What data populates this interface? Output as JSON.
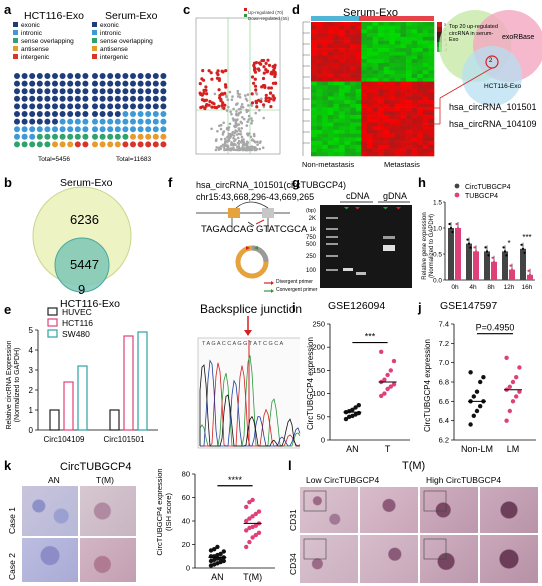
{
  "panel_letters": [
    "a",
    "b",
    "c",
    "d",
    "e",
    "f",
    "g",
    "h",
    "i",
    "j",
    "k",
    "l"
  ],
  "panel_a": {
    "left_title": "HCT116-Exo",
    "right_title": "Serum-Exo",
    "legend": [
      "exonic",
      "intronic",
      "sense overlapping",
      "antisense",
      "intergenic"
    ],
    "legend_colors": [
      "#1f3d7a",
      "#3d9ad6",
      "#2fa36b",
      "#e89a2c",
      "#d9342b"
    ],
    "left_total": "Total=5456",
    "right_total": "Total=11683"
  },
  "panel_b": {
    "top_label": "Serum-Exo",
    "bottom_label": "HCT116-Exo",
    "only_serum": "6236",
    "shared": "5447",
    "only_hct": "9",
    "colors": {
      "serum": "#e9efb8",
      "hct": "#7cc7b7"
    }
  },
  "panel_c": {
    "legend_up": "Up-regulated (70)",
    "legend_down": "Down-regulated (55)"
  },
  "panel_d": {
    "title": "Serum-Exo",
    "left_group": "Non-metastasis",
    "right_group": "Metastasis",
    "venn_text": "Top 20 up-regulated circRNA in serum-Exo",
    "venn_db": "exoRBase",
    "venn_cell": "HCT116-Exo",
    "venn_count": "2",
    "hits": [
      "hsa_circRNA_101501",
      "hsa_circRNA_104109"
    ],
    "colorbar_ticks": [
      "3",
      "2",
      "1",
      "0",
      "-1",
      "-2"
    ]
  },
  "panel_e": {
    "ylabel": "Relative circRNA Expression (Normalized to GAPDH)",
    "legend": [
      "HUVEC",
      "HCT116",
      "SW480"
    ],
    "series_colors": [
      "#222222",
      "#e0407a",
      "#2ba3a3"
    ]
  },
  "panel_f": {
    "title1": "hsa_circRNA_101501(circTUBGCP4)",
    "title2": "chr15:43,668,296-43,669,265",
    "seq_left": "TAGACCAG",
    "seq_right": "GTATCGCA",
    "legend_div": "Divergent primer",
    "legend_conv": "Convergent primer",
    "junction": "Backsplice junction",
    "chrom_seq": "T A G A C C A G G T A T C G C A"
  },
  "panel_g": {
    "bp_label": "(bp)",
    "group1": "cDNA",
    "group2": "gDNA",
    "lane_m": "M",
    "ladder": [
      "2K",
      "1k",
      "750",
      "500",
      "250",
      "100"
    ]
  },
  "panel_h": {
    "ylabel": "Relative gene expression (Normalized to GAPDH)",
    "legend": [
      "CircTUBGCP4",
      "TUBGCP4"
    ],
    "sig": [
      "*",
      "***"
    ]
  },
  "panel_i": {
    "title": "GSE126094",
    "ylabel": "CircTUBGCP4 expression",
    "sig": "***",
    "groups": [
      "AN",
      "T"
    ]
  },
  "panel_j": {
    "title": "GSE147597",
    "ylabel": "CircTUBGCP4 expression",
    "pval": "P=0.4950",
    "groups": [
      "Non-LM",
      "LM"
    ],
    "yticks": [
      "7.4",
      "7.2",
      "7.0",
      "6.8",
      "6.6",
      "6.4",
      "6.2"
    ]
  },
  "panel_k": {
    "title": "CircTUBGCP4",
    "col1": "AN",
    "col2": "T(M)",
    "row1": "Case 1",
    "row2": "Case 2",
    "ylabel": "CircTUBGCP4 expression (ISH score)",
    "sig": "****",
    "groups": [
      "AN",
      "T(M)"
    ]
  },
  "panel_l": {
    "title": "T(M)",
    "col1": "Low CircTUBGCP4",
    "col2": "High CircTUBGCP4",
    "row1": "CD31",
    "row2": "CD34"
  },
  "chart_data": [
    {
      "type": "bar",
      "panel": "e",
      "categories": [
        "Circ104109",
        "Circ101501"
      ],
      "series": [
        {
          "name": "HUVEC",
          "values": [
            1.0,
            1.0
          ]
        },
        {
          "name": "HCT116",
          "values": [
            2.4,
            4.7
          ]
        },
        {
          "name": "SW480",
          "values": [
            3.2,
            4.9
          ]
        }
      ],
      "ylim": [
        0,
        5
      ],
      "yticks": [
        0,
        1,
        2,
        3,
        4,
        5
      ]
    },
    {
      "type": "bar",
      "panel": "h",
      "categories": [
        "0h",
        "4h",
        "8h",
        "12h",
        "16h"
      ],
      "series": [
        {
          "name": "CircTUBGCP4",
          "values": [
            1.0,
            0.7,
            0.55,
            0.55,
            0.6
          ]
        },
        {
          "name": "TUBGCP4",
          "values": [
            1.0,
            0.55,
            0.35,
            0.2,
            0.1
          ]
        }
      ],
      "ylim": [
        0,
        1.5
      ],
      "yticks": [
        0.0,
        0.5,
        1.0,
        1.5
      ]
    },
    {
      "type": "scatter",
      "panel": "i",
      "groups": [
        "AN",
        "T"
      ],
      "values": [
        [
          45,
          50,
          52,
          55,
          58,
          60,
          62,
          65,
          70,
          75
        ],
        [
          95,
          100,
          110,
          115,
          120,
          125,
          130,
          140,
          150,
          170,
          190
        ]
      ],
      "ylim": [
        0,
        250
      ],
      "yticks": [
        0,
        50,
        100,
        150,
        200,
        250
      ]
    },
    {
      "type": "scatter",
      "panel": "j",
      "groups": [
        "Non-LM",
        "LM"
      ],
      "values": [
        [
          6.36,
          6.45,
          6.5,
          6.55,
          6.6,
          6.6,
          6.65,
          6.7,
          6.8,
          6.85,
          6.9
        ],
        [
          6.4,
          6.5,
          6.6,
          6.65,
          6.7,
          6.72,
          6.75,
          6.8,
          6.85,
          6.95,
          7.05
        ]
      ],
      "ylim": [
        6.2,
        7.4
      ],
      "yticks": [
        6.2,
        6.4,
        6.6,
        6.8,
        7.0,
        7.2,
        7.4
      ]
    },
    {
      "type": "scatter",
      "panel": "k",
      "groups": [
        "AN",
        "T(M)"
      ],
      "values": [
        [
          2,
          3,
          4,
          5,
          6,
          6,
          7,
          8,
          8,
          9,
          10,
          10,
          11,
          12,
          14,
          15,
          16,
          18
        ],
        [
          18,
          22,
          26,
          28,
          30,
          32,
          34,
          35,
          36,
          38,
          40,
          42,
          44,
          46,
          48,
          52,
          56,
          58
        ]
      ],
      "ylim": [
        0,
        80
      ],
      "yticks": [
        0,
        20,
        40,
        60,
        80
      ]
    }
  ]
}
